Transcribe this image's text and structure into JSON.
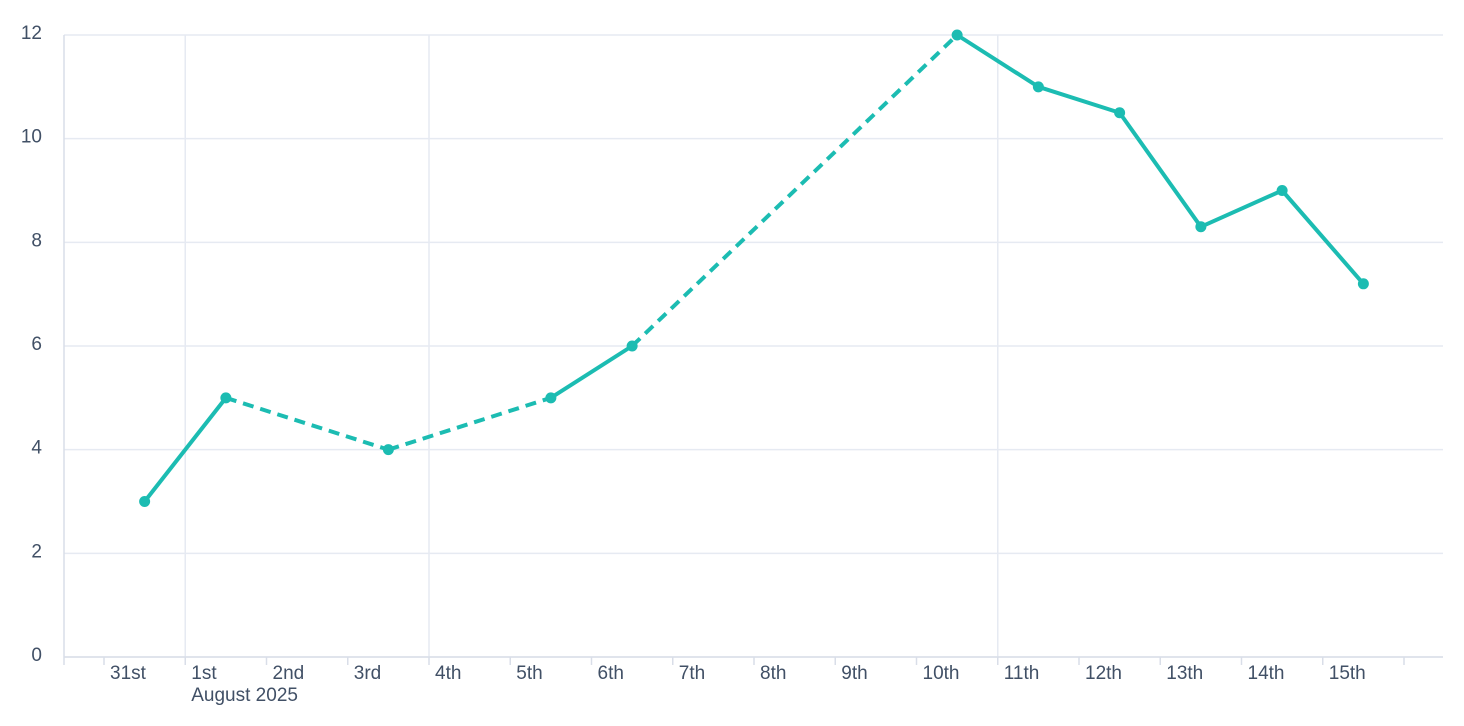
{
  "chart_data": {
    "type": "line",
    "title": "",
    "x_axis": {
      "kind": "datetime-days",
      "tick_labels": [
        "31st",
        "1st",
        "2nd",
        "3rd",
        "4th",
        "5th",
        "6th",
        "7th",
        "8th",
        "9th",
        "10th",
        "11th",
        "12th",
        "13th",
        "14th",
        "15th"
      ],
      "month_label": "August 2025",
      "month_label_day_index": 1,
      "weekly_gridline_day_indices": [
        1,
        4,
        11
      ]
    },
    "y_axis": {
      "ticks": [
        0,
        2,
        4,
        6,
        8,
        10,
        12
      ],
      "range": [
        0,
        12
      ]
    },
    "grid": {
      "horizontal": true,
      "vertical": "weekly"
    },
    "legend": "none",
    "series": [
      {
        "name": "value-by-date",
        "marker": "circle",
        "points": [
          {
            "label": "31st",
            "day": 0,
            "value": 3,
            "to_next": "solid"
          },
          {
            "label": "1st",
            "day": 1,
            "value": 5,
            "to_next": "dashed"
          },
          {
            "label": "3rd",
            "day": 3,
            "value": 4,
            "to_next": "dashed"
          },
          {
            "label": "5th",
            "day": 5,
            "value": 5,
            "to_next": "solid"
          },
          {
            "label": "6th",
            "day": 6,
            "value": 6,
            "to_next": "dashed"
          },
          {
            "label": "10th",
            "day": 10,
            "value": 12,
            "to_next": "solid"
          },
          {
            "label": "11th",
            "day": 11,
            "value": 11,
            "to_next": "solid"
          },
          {
            "label": "12th",
            "day": 12,
            "value": 10.5,
            "to_next": "solid"
          },
          {
            "label": "13th",
            "day": 13,
            "value": 8.3,
            "to_next": "solid"
          },
          {
            "label": "14th",
            "day": 14,
            "value": 9,
            "to_next": "solid"
          },
          {
            "label": "15th",
            "day": 15,
            "value": 7.2,
            "to_next": null
          }
        ]
      }
    ],
    "colors": {
      "series": "#1CBCB2",
      "grid": "#E6EAF2",
      "axis": "#D9DEE8",
      "text": "#415066",
      "background": "#FFFFFF"
    }
  }
}
